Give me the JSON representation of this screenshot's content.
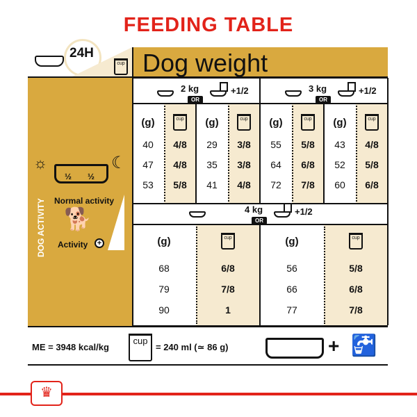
{
  "title": "FEEDING TABLE",
  "header": {
    "period": "24H",
    "column_title": "Dog weight",
    "cup_label": "cup"
  },
  "left_panel": {
    "section_label": "DOG ACTIVITY",
    "half_left": "½",
    "half_right": "½",
    "normal_activity": "Normal activity",
    "activity": "Activity"
  },
  "or_label": "OR",
  "mixed_label": "+1/2",
  "gram_header": "(g)",
  "cup_header": "cup",
  "weights": [
    {
      "kg": "2 kg",
      "dry": {
        "g": [
          "40",
          "47",
          "53"
        ],
        "cup": [
          "4/8",
          "4/8",
          "5/8"
        ]
      },
      "mixed": {
        "g": [
          "29",
          "35",
          "41"
        ],
        "cup": [
          "3/8",
          "3/8",
          "4/8"
        ]
      }
    },
    {
      "kg": "3 kg",
      "dry": {
        "g": [
          "55",
          "64",
          "72"
        ],
        "cup": [
          "5/8",
          "6/8",
          "7/8"
        ]
      },
      "mixed": {
        "g": [
          "43",
          "52",
          "60"
        ],
        "cup": [
          "4/8",
          "5/8",
          "6/8"
        ]
      }
    },
    {
      "kg": "4 kg",
      "dry": {
        "g": [
          "68",
          "79",
          "90"
        ],
        "cup": [
          "6/8",
          "7/8",
          "1"
        ]
      },
      "mixed": {
        "g": [
          "56",
          "66",
          "77"
        ],
        "cup": [
          "5/8",
          "6/8",
          "7/8"
        ]
      }
    }
  ],
  "footer": {
    "energy": "ME = 3948 kcal/kg",
    "cup_equiv": "= 240 ml (≃ 86 g)",
    "cup_label": "cup",
    "plus": "+"
  },
  "colors": {
    "title": "#e2231a",
    "gold": "#d9a93f",
    "beige": "#f6ead0"
  }
}
